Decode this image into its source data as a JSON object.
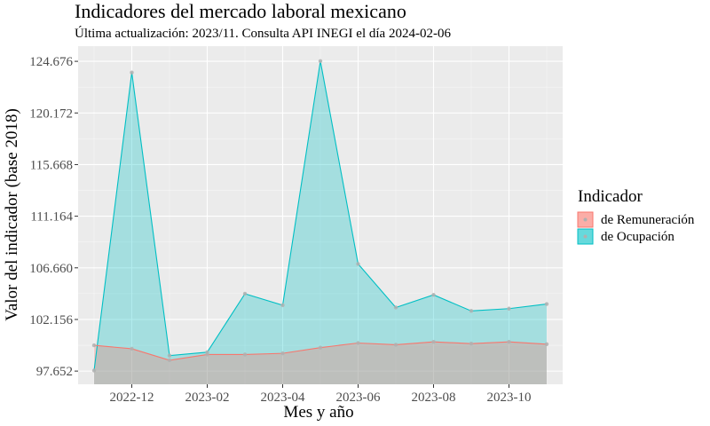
{
  "chart_data": {
    "type": "area",
    "title": "Indicadores del mercado laboral mexicano",
    "subtitle": "Última actualización: 2023/11. Consulta API INEGI el día 2024-02-06",
    "xlabel": "Mes y año",
    "ylabel": "Valor del indicador (base 2018)",
    "x": [
      "2022-11",
      "2022-12",
      "2023-01",
      "2023-02",
      "2023-03",
      "2023-04",
      "2023-05",
      "2023-06",
      "2023-07",
      "2023-08",
      "2023-09",
      "2023-10",
      "2023-11"
    ],
    "x_ticks": [
      "2022-12",
      "2023-02",
      "2023-04",
      "2023-06",
      "2023-08",
      "2023-10"
    ],
    "y_ticks": [
      "97.652",
      "102.156",
      "106.660",
      "111.164",
      "115.668",
      "120.172",
      "124.676"
    ],
    "ylim": [
      96.5,
      126.0
    ],
    "grid": true,
    "legend_position": "right",
    "legend_title": "Indicador",
    "series": [
      {
        "name": "de Ocupación",
        "color": "#00BFC4",
        "values": [
          97.7,
          123.7,
          99.0,
          99.3,
          104.4,
          103.4,
          124.7,
          107.0,
          103.2,
          104.3,
          102.9,
          103.1,
          103.5
        ]
      },
      {
        "name": "de Remuneración",
        "color": "#F8766D",
        "values": [
          99.9,
          99.6,
          98.6,
          99.1,
          99.1,
          99.2,
          99.7,
          100.1,
          99.95,
          100.2,
          100.05,
          100.2,
          100.0
        ]
      }
    ]
  }
}
